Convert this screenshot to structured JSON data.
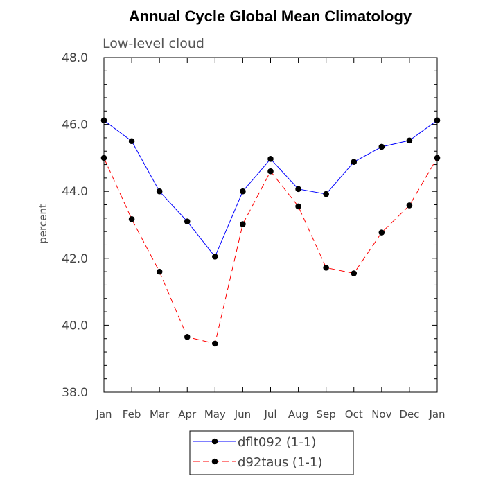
{
  "chart_data": {
    "type": "line",
    "title": "Annual Cycle Global Mean Climatology",
    "subtitle": "Low-level cloud",
    "xlabel": "",
    "ylabel": "percent",
    "categories": [
      "Jan",
      "Feb",
      "Mar",
      "Apr",
      "May",
      "Jun",
      "Jul",
      "Aug",
      "Sep",
      "Oct",
      "Nov",
      "Dec",
      "Jan"
    ],
    "ylim": [
      38.0,
      48.0
    ],
    "yticks": [
      38.0,
      40.0,
      42.0,
      44.0,
      46.0,
      48.0
    ],
    "ytick_labels": [
      "38.0",
      "40.0",
      "42.0",
      "44.0",
      "46.0",
      "48.0"
    ],
    "series": [
      {
        "name": "dflt092 (1-1)",
        "color": "#0000ff",
        "style": "solid",
        "values": [
          46.12,
          45.5,
          44.0,
          43.1,
          42.05,
          44.0,
          44.97,
          44.07,
          43.92,
          44.88,
          45.33,
          45.52,
          46.12
        ]
      },
      {
        "name": "d92taus (1-1)",
        "color": "#ff0000",
        "style": "dashed",
        "values": [
          45.0,
          43.17,
          41.6,
          39.65,
          39.45,
          43.02,
          44.6,
          43.55,
          41.72,
          41.55,
          42.77,
          43.58,
          45.0
        ]
      }
    ],
    "legend": {
      "position": "bottom-center",
      "entries": [
        "dflt092 (1-1)",
        "d92taus (1-1)"
      ]
    }
  }
}
